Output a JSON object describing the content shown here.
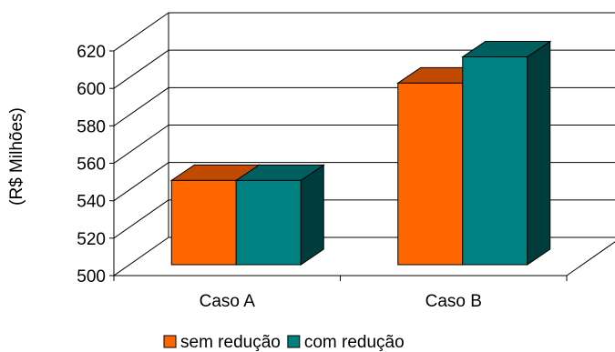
{
  "chart_data": {
    "type": "bar",
    "categories": [
      "Caso A",
      "Caso B"
    ],
    "series": [
      {
        "name": "sem redução",
        "values": [
          545,
          597
        ]
      },
      {
        "name": "com redução",
        "values": [
          545,
          611
        ]
      }
    ],
    "title": "",
    "xlabel": "",
    "ylabel": "(R$ Milhões)",
    "ylim": [
      500,
      620
    ],
    "yticks": [
      500,
      520,
      540,
      560,
      580,
      600,
      620
    ],
    "grid": true,
    "three_d": true,
    "legend_position": "bottom"
  },
  "colors": {
    "series": [
      "#FF6600",
      "#008080"
    ],
    "series_top": [
      "#C04B00",
      "#006060"
    ],
    "series_side": [
      "#7F3300",
      "#003C3C"
    ],
    "axis": "#000000",
    "background": "#FFFFFF"
  }
}
